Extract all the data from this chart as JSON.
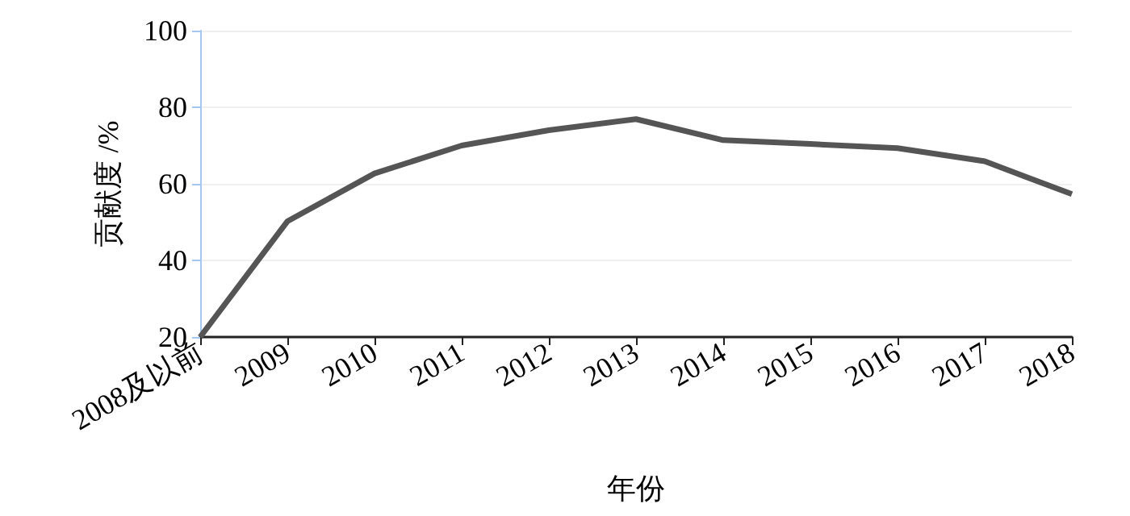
{
  "chart_data": {
    "type": "line",
    "xlabel": "年份",
    "ylabel": "贡献度 /%",
    "categories": [
      "2008及以前",
      "2009",
      "2010",
      "2011",
      "2012",
      "2013",
      "2014",
      "2015",
      "2016",
      "2017",
      "2018"
    ],
    "series": [
      {
        "color": "#555555",
        "values": [
          20,
          50.2,
          62.7,
          70,
          74,
          76.9,
          71.4,
          70.4,
          69.3,
          65.9,
          57.3
        ]
      }
    ],
    "ylim": [
      20,
      100
    ],
    "yticks": [
      20,
      40,
      60,
      80,
      100
    ],
    "grid": "y",
    "marker": "none",
    "line_style": "solid"
  }
}
